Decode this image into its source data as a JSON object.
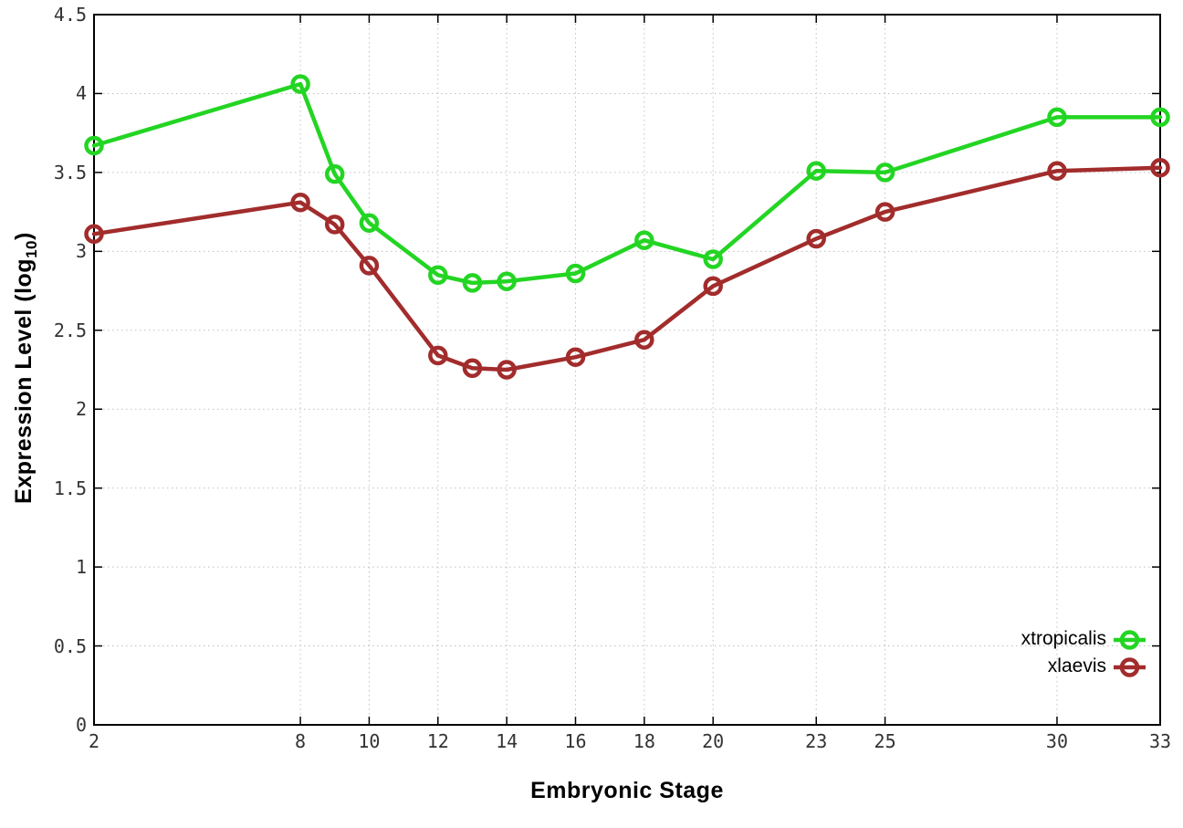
{
  "chart_data": {
    "type": "line",
    "title": "",
    "xlabel": "Embryonic Stage",
    "ylabel": {
      "main": "Expression Level (log",
      "sub": "10",
      "end": ")"
    },
    "x": [
      2,
      8,
      9,
      10,
      12,
      13,
      14,
      16,
      18,
      20,
      23,
      25,
      30,
      33
    ],
    "series": [
      {
        "name": "xtropicalis",
        "color": "#23d523",
        "marker": "open-circle",
        "values": [
          3.67,
          4.06,
          3.49,
          3.18,
          2.85,
          2.8,
          2.81,
          2.86,
          3.07,
          2.95,
          3.51,
          3.5,
          3.85,
          3.85
        ]
      },
      {
        "name": "xlaevis",
        "color": "#a22c2c",
        "marker": "open-circle",
        "values": [
          3.11,
          3.31,
          3.17,
          2.91,
          2.34,
          2.26,
          2.25,
          2.33,
          2.44,
          2.78,
          3.08,
          3.25,
          3.51,
          3.53
        ]
      }
    ],
    "xlim": [
      2,
      33
    ],
    "ylim": [
      0,
      4.5
    ],
    "xtick_labels": [
      "2",
      "8",
      "10",
      "12",
      "14",
      "16",
      "18",
      "20",
      "23",
      "25",
      "30",
      "33"
    ],
    "ytick_labels": [
      "0",
      "0.5",
      "1",
      "1.5",
      "2",
      "2.5",
      "3",
      "3.5",
      "4",
      "4.5"
    ],
    "grid": true,
    "grid_style": "dotted",
    "legend_position": "inside-bottom-right",
    "colors": {
      "background": "#ffffff",
      "axis_border": "#000000",
      "tick_label": "#333333",
      "grid": "#c0c0c0",
      "axis_title": "#000000",
      "legend_text": "#000000"
    }
  }
}
